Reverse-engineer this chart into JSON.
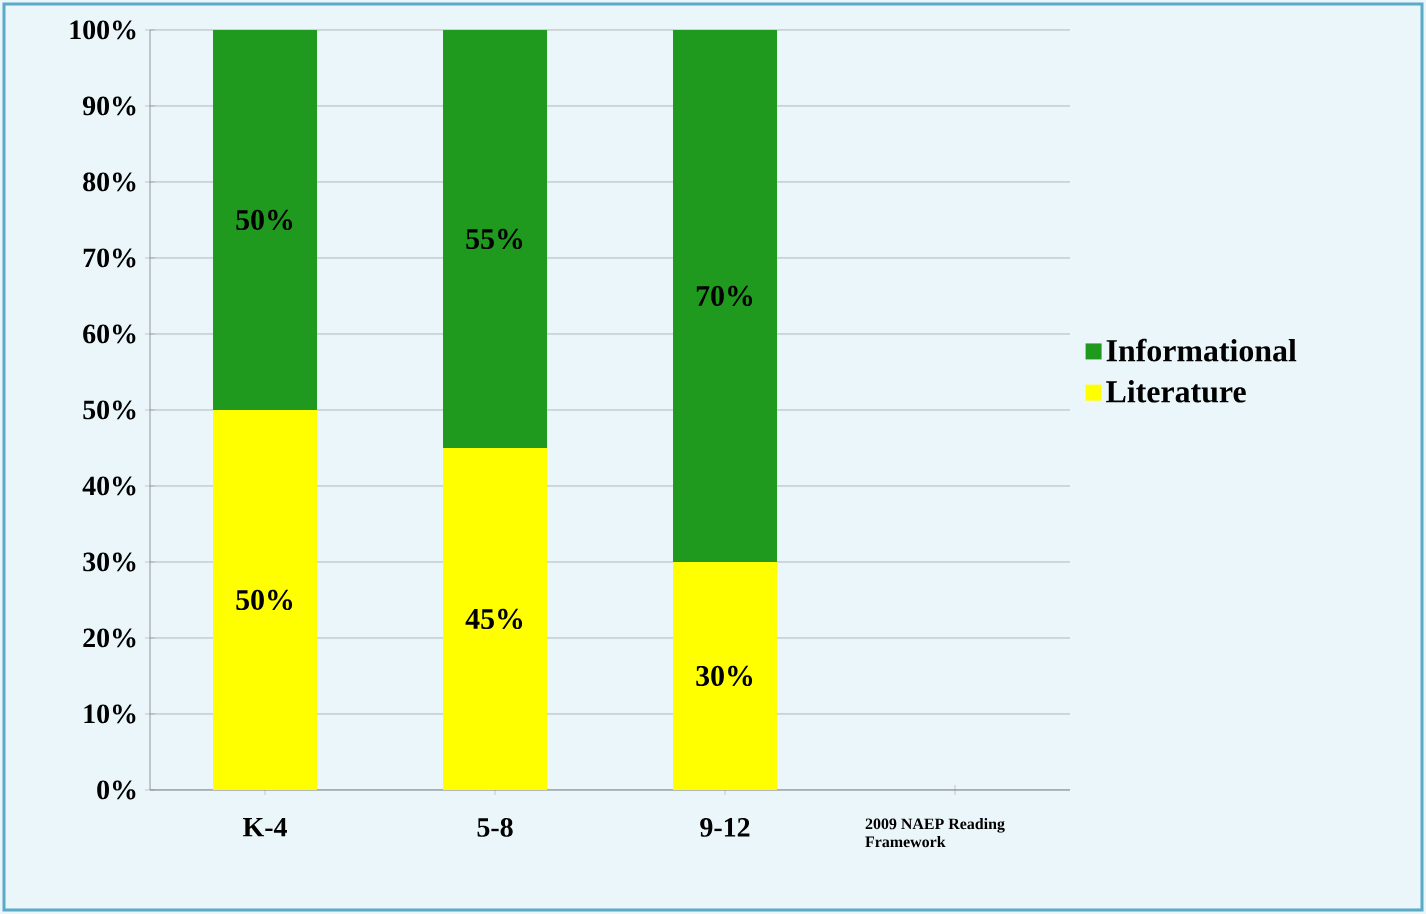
{
  "chart_data": {
    "type": "bar",
    "stacked": true,
    "categories": [
      "K-4",
      "5-8",
      "9-12",
      "2009 NAEP Reading Framework"
    ],
    "series": [
      {
        "name": "Literature",
        "color": "#ffff00",
        "values": [
          50,
          45,
          30,
          null
        ],
        "value_labels": [
          "50%",
          "45%",
          "30%",
          null
        ]
      },
      {
        "name": "Informational",
        "color": "#1f9a1f",
        "values": [
          50,
          55,
          70,
          null
        ],
        "value_labels": [
          "50%",
          "55%",
          "70%",
          null
        ]
      }
    ],
    "ylim": [
      0,
      100
    ],
    "yticks": [
      {
        "value": 0,
        "label": "0%"
      },
      {
        "value": 10,
        "label": "10%"
      },
      {
        "value": 20,
        "label": "20%"
      },
      {
        "value": 30,
        "label": "30%"
      },
      {
        "value": 40,
        "label": "40%"
      },
      {
        "value": 50,
        "label": "50%"
      },
      {
        "value": 60,
        "label": "60%"
      },
      {
        "value": 70,
        "label": "70%"
      },
      {
        "value": 80,
        "label": "80%"
      },
      {
        "value": 90,
        "label": "90%"
      },
      {
        "value": 100,
        "label": "100%"
      }
    ],
    "grid": "y",
    "legend": "right"
  }
}
